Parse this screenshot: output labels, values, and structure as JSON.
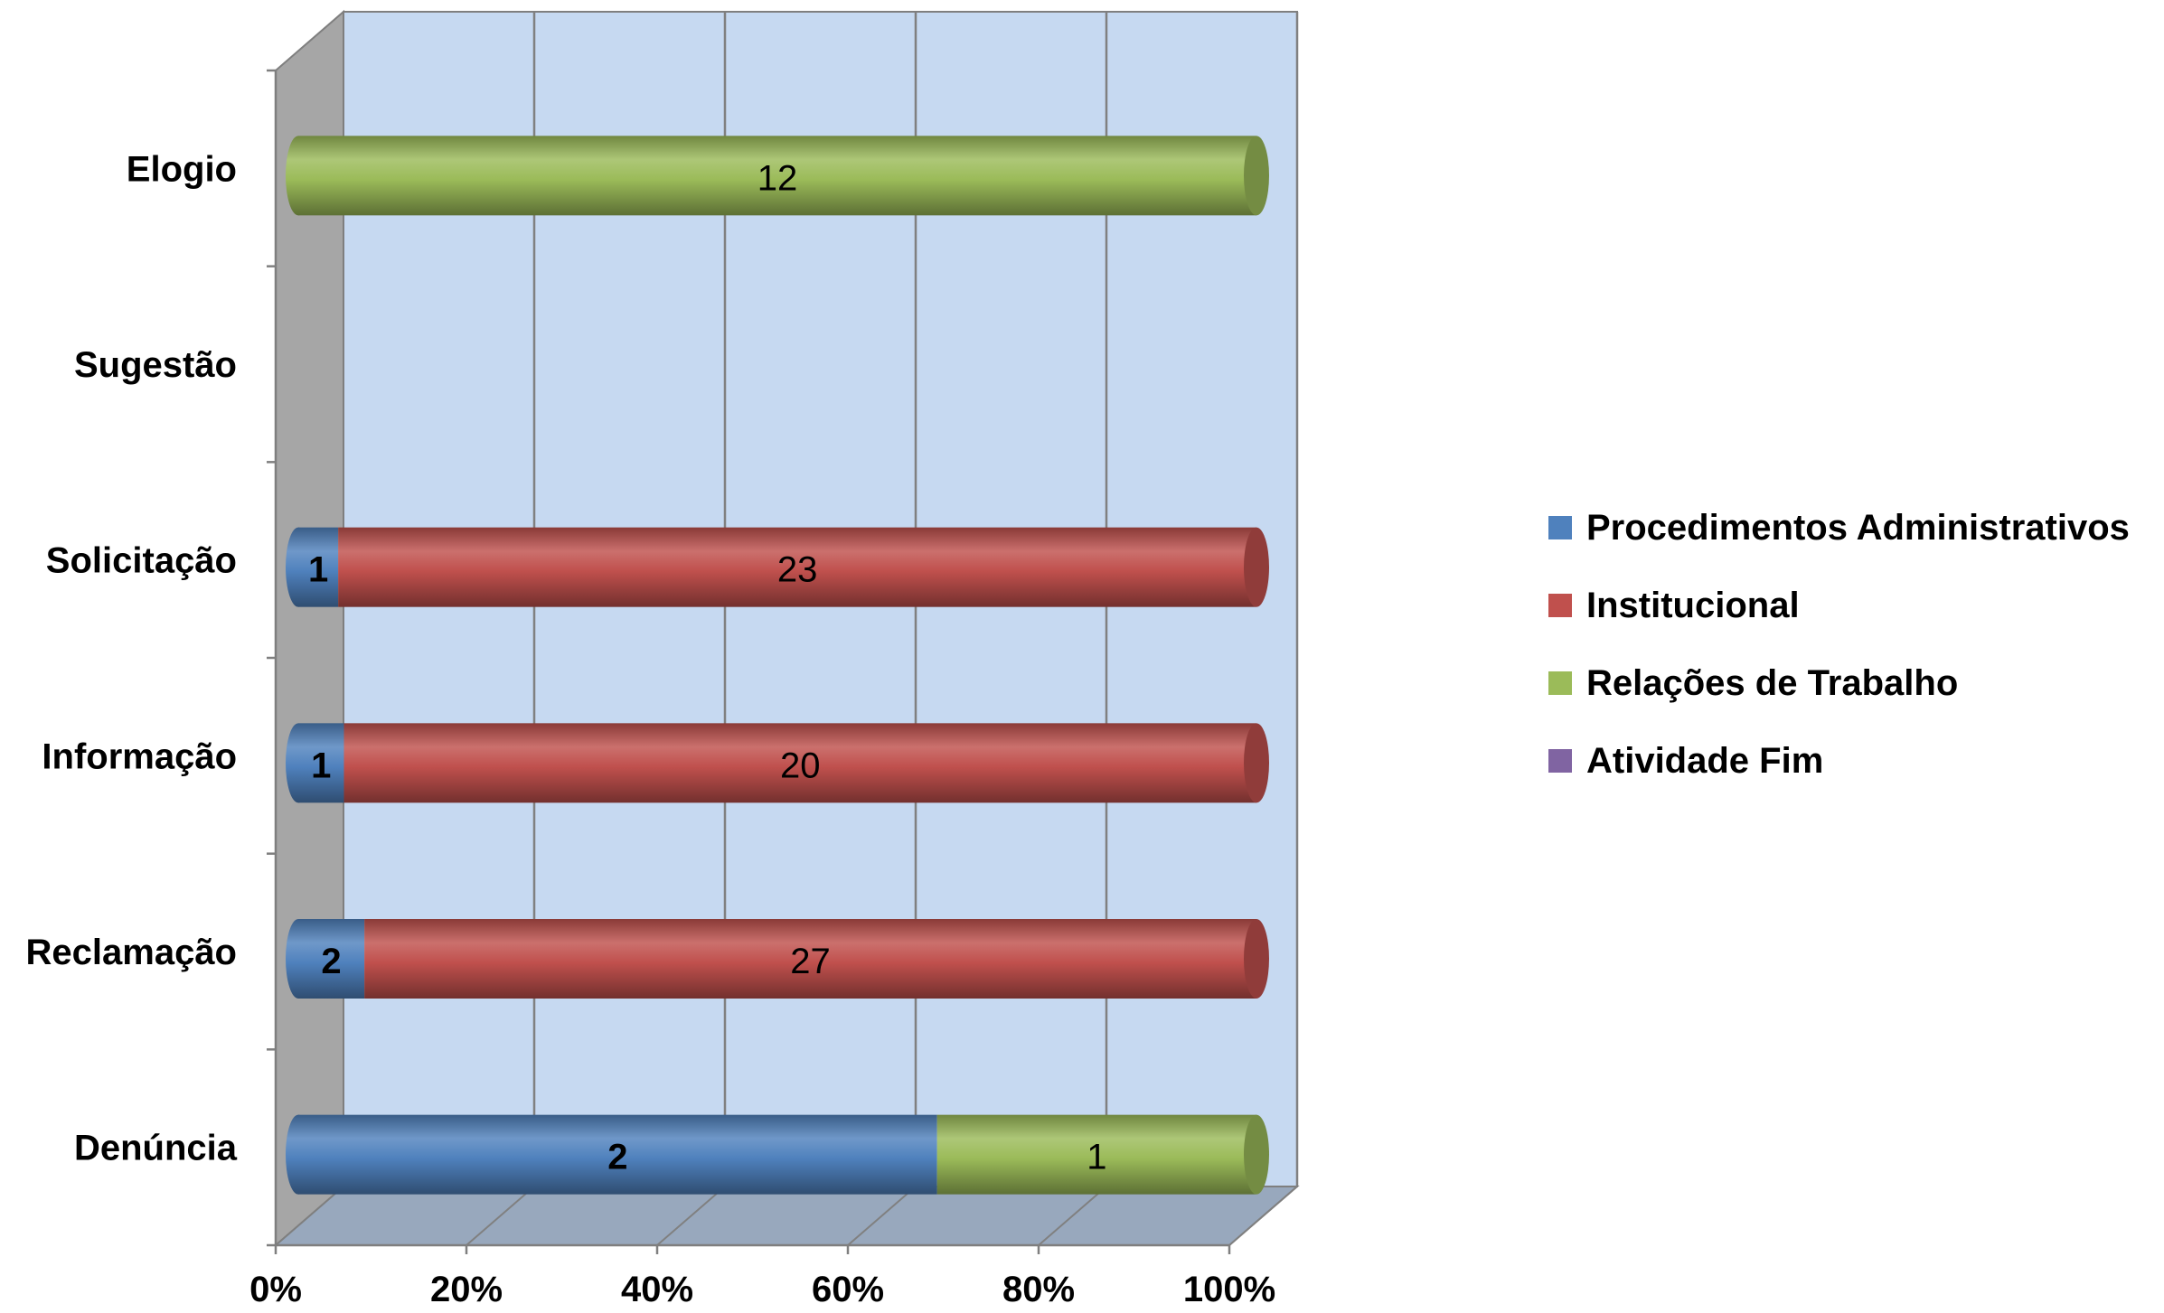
{
  "chart_data": {
    "type": "bar",
    "orientation": "horizontal",
    "stacked": "percent",
    "three_d": true,
    "categories": [
      "Denúncia",
      "Reclamação",
      "Informação",
      "Solicitação",
      "Sugestão",
      "Elogio"
    ],
    "series": [
      {
        "name": "Procedimentos Administrativos",
        "color": "#4F81BD",
        "values": [
          2,
          2,
          1,
          1,
          0,
          0
        ]
      },
      {
        "name": "Institucional",
        "color": "#C0504D",
        "values": [
          0,
          27,
          20,
          23,
          0,
          0
        ]
      },
      {
        "name": "Relações de Trabalho",
        "color": "#9BBB59",
        "values": [
          1,
          0,
          0,
          0,
          0,
          12
        ]
      },
      {
        "name": "Atividade Fim",
        "color": "#8064A2",
        "values": [
          0,
          0,
          0,
          0,
          0,
          0
        ]
      }
    ],
    "xticks": [
      "0%",
      "20%",
      "40%",
      "60%",
      "80%",
      "100%"
    ],
    "xlim": [
      0,
      100
    ],
    "grid": true,
    "legend_position": "right",
    "plot_background": "#C6D9F1",
    "side_wall_color": "#A6A6A6",
    "floor_color": "#98A8BD"
  }
}
